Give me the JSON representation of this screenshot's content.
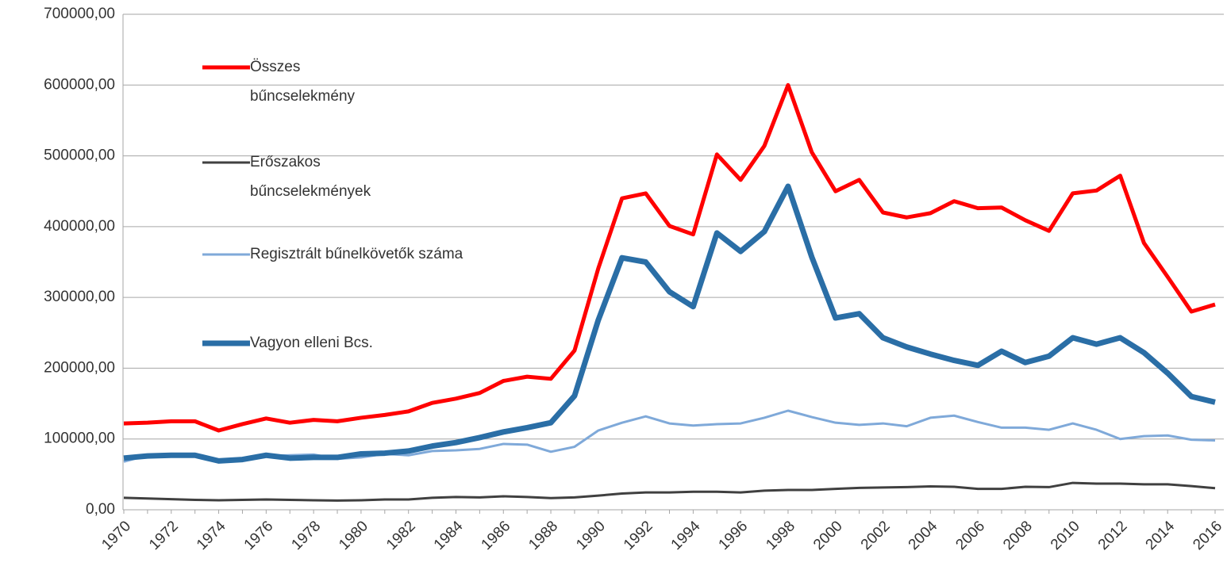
{
  "chart_data": {
    "type": "line",
    "categories": [
      "1970",
      null,
      "1972",
      null,
      "1974",
      null,
      "1976",
      null,
      "1978",
      null,
      "1980",
      null,
      "1982",
      null,
      "1984",
      null,
      "1986",
      null,
      "1988",
      null,
      "1990",
      null,
      "1992",
      null,
      "1994",
      null,
      "1996",
      null,
      "1998",
      null,
      "2000",
      null,
      "2002",
      null,
      "2004",
      null,
      "2006",
      null,
      "2008",
      null,
      "2010",
      null,
      "2012",
      null,
      "2014",
      null,
      "2016"
    ],
    "series": [
      {
        "name": "Összes bűncselekmény",
        "color": "#ff0000",
        "values": [
          122000,
          123000,
          125000,
          125000,
          112000,
          121000,
          129000,
          123000,
          127000,
          125000,
          130000,
          134000,
          139000,
          151000,
          157000,
          165000,
          182000,
          188000,
          185000,
          225000,
          341000,
          440000,
          447000,
          401000,
          389000,
          502000,
          466000,
          514000,
          600000,
          505000,
          450000,
          466000,
          420000,
          413000,
          419000,
          436000,
          426000,
          427000,
          409000,
          394000,
          447000,
          451000,
          472000,
          377000,
          329000,
          280000,
          290000
        ]
      },
      {
        "name": "Erőszakos bűncselekmények",
        "color": "#404040",
        "values": [
          17000,
          16000,
          15000,
          14000,
          13500,
          14000,
          14500,
          14000,
          13500,
          13000,
          13500,
          14500,
          14500,
          17000,
          18000,
          17500,
          19000,
          18000,
          16500,
          17500,
          20000,
          23000,
          24500,
          24500,
          25500,
          25500,
          24500,
          27000,
          28000,
          28000,
          29500,
          31000,
          31500,
          32000,
          33000,
          32500,
          29500,
          29500,
          32500,
          32000,
          38000,
          37000,
          37000,
          36000,
          36000,
          33500,
          30500
        ]
      },
      {
        "name": "Regisztrált bűnelkövetők száma",
        "color": "#7fa9d9",
        "values": [
          68000,
          77000,
          78000,
          78000,
          71000,
          72000,
          76000,
          77000,
          78000,
          72000,
          74000,
          79000,
          77000,
          83000,
          84000,
          86000,
          93000,
          92000,
          82000,
          89000,
          112000,
          123000,
          132000,
          122000,
          119000,
          121000,
          122000,
          130000,
          140000,
          131000,
          123000,
          120000,
          122000,
          118000,
          130000,
          133000,
          124000,
          116000,
          116000,
          113000,
          122000,
          113000,
          100000,
          104000,
          105000,
          99000,
          98000
        ]
      },
      {
        "name": "Vagyon elleni Bcs.",
        "color": "#2a6ea6",
        "values": [
          73000,
          76000,
          77000,
          77000,
          69000,
          71000,
          77000,
          73000,
          74000,
          74000,
          79000,
          80000,
          83000,
          90000,
          95000,
          102000,
          110000,
          116000,
          123000,
          161000,
          268000,
          356000,
          350000,
          308000,
          287000,
          391000,
          365000,
          393000,
          457000,
          357000,
          271000,
          277000,
          243000,
          230000,
          220000,
          211000,
          204000,
          224000,
          208000,
          217000,
          243000,
          234000,
          243000,
          222000,
          193000,
          160000,
          152000
        ]
      }
    ],
    "ylim": [
      0,
      700000
    ],
    "yticks": [
      {
        "value": 0,
        "label": "0,00"
      },
      {
        "value": 100000,
        "label": "100000,00"
      },
      {
        "value": 200000,
        "label": "200000,00"
      },
      {
        "value": 300000,
        "label": "300000,00"
      },
      {
        "value": 400000,
        "label": "400000,00"
      },
      {
        "value": 500000,
        "label": "500000,00"
      },
      {
        "value": 600000,
        "label": "600000,00"
      },
      {
        "value": 700000,
        "label": "700000,00"
      }
    ],
    "grid": true
  }
}
